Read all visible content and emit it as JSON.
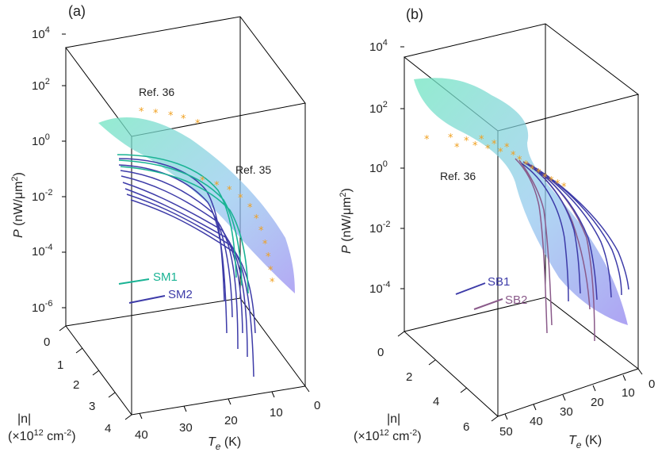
{
  "chart_data": [
    {
      "panel_label": "(a)",
      "type": "3d-line-surface",
      "ylabel": "P (nW/μm²)",
      "ylabel_parts": {
        "var": "P",
        "unit_open": " (nW/",
        "mu": "μ",
        "m": "m",
        "sup": "2",
        "close": ")"
      },
      "y_scale": "log",
      "y_ticks": [
        {
          "base": "10",
          "exp": "4"
        },
        {
          "base": "10",
          "exp": "2"
        },
        {
          "base": "10",
          "exp": "0"
        },
        {
          "base": "10",
          "exp": "-2"
        },
        {
          "base": "10",
          "exp": "-4"
        },
        {
          "base": "10",
          "exp": "-6"
        }
      ],
      "xlabel": "Te (K)",
      "xlabel_parts": {
        "var": "T",
        "sub": "e",
        "unit": " (K)"
      },
      "x_ticks": [
        "40",
        "30",
        "20",
        "10",
        "0"
      ],
      "zlabel": "|n| (×10¹² cm⁻²)",
      "zlabel_parts": {
        "line1": "|n|",
        "pre": "(×10",
        "sup": "12",
        "mid": " cm",
        "sup2": "-2",
        "close": ")"
      },
      "z_ticks": [
        "0",
        "1",
        "2",
        "3",
        "4"
      ],
      "annotations": [
        "Ref. 36",
        "Ref. 35"
      ],
      "series": [
        {
          "name": "SM1",
          "color": "#1ab394"
        },
        {
          "name": "SM2",
          "color": "#3d3ba8"
        }
      ],
      "reference_points_color": "#f0a020",
      "surface_colors": [
        "#7fe6c4",
        "#9ec8ee",
        "#a99af0"
      ]
    },
    {
      "panel_label": "(b)",
      "type": "3d-line-surface",
      "ylabel": "P (nW/μm²)",
      "ylabel_parts": {
        "var": "P",
        "unit_open": " (nW/",
        "mu": "μ",
        "m": "m",
        "sup": "2",
        "close": ")"
      },
      "y_scale": "log",
      "y_ticks": [
        {
          "base": "10",
          "exp": "4"
        },
        {
          "base": "10",
          "exp": "2"
        },
        {
          "base": "10",
          "exp": "0"
        },
        {
          "base": "10",
          "exp": "-2"
        },
        {
          "base": "10",
          "exp": "-4"
        }
      ],
      "xlabel": "Te (K)",
      "xlabel_parts": {
        "var": "T",
        "sub": "e",
        "unit": " (K)"
      },
      "x_ticks": [
        "50",
        "40",
        "30",
        "20",
        "10",
        "0"
      ],
      "zlabel": "|n| (×10¹² cm⁻²)",
      "zlabel_parts": {
        "line1": "|n|",
        "pre": "(×10",
        "sup": "12",
        "mid": " cm",
        "sup2": "-2",
        "close": ")"
      },
      "z_ticks": [
        "0",
        "2",
        "4",
        "6"
      ],
      "annotations": [
        "Ref. 36"
      ],
      "series": [
        {
          "name": "SB1",
          "color": "#3d3ba8"
        },
        {
          "name": "SB2",
          "color": "#8a5a8a"
        }
      ],
      "reference_points_color": "#f0a020",
      "surface_colors": [
        "#7fe6c4",
        "#9ec8ee",
        "#a99af0"
      ]
    }
  ]
}
